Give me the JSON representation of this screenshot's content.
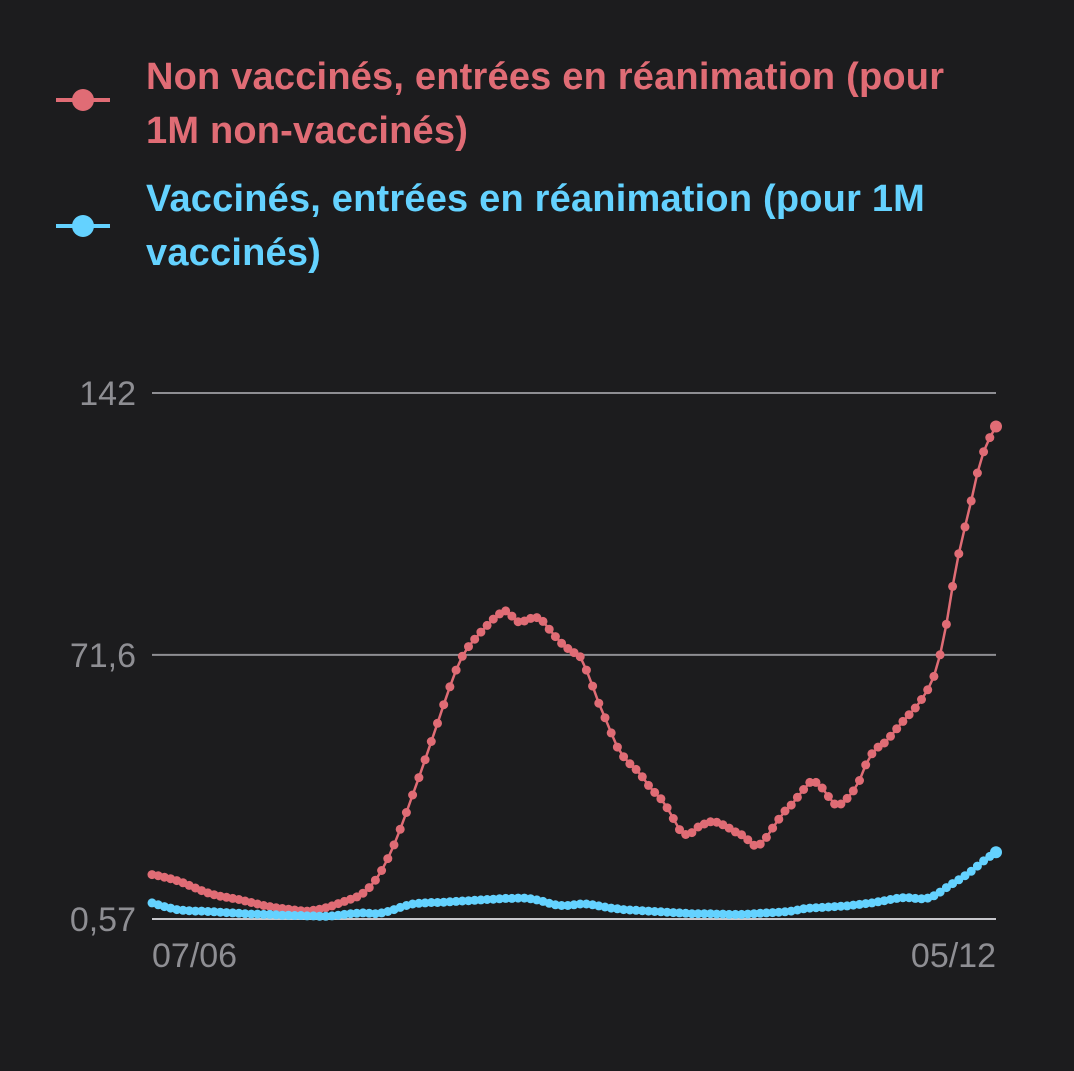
{
  "chart_data": {
    "type": "line",
    "title": "",
    "xlabel": "",
    "ylabel": "",
    "x_range": [
      "07/06",
      "05/12"
    ],
    "x_ticks": [
      "07/06",
      "05/12"
    ],
    "y_ticks": [
      "142",
      "71,6",
      "0,57"
    ],
    "ylim": [
      0.57,
      142
    ],
    "grid": true,
    "legend": "top",
    "series": [
      {
        "name": "Non vaccinés, entrées en réanimation (pour 1M non-vaccinés)",
        "color": "#e06c75",
        "values": [
          12.5,
          12.2,
          11.8,
          11.4,
          10.9,
          10.3,
          9.6,
          8.9,
          8.2,
          7.6,
          7.1,
          6.7,
          6.4,
          6.1,
          5.8,
          5.4,
          5.0,
          4.6,
          4.2,
          3.9,
          3.6,
          3.4,
          3.2,
          3.0,
          2.8,
          2.7,
          2.9,
          3.2,
          3.6,
          4.1,
          4.7,
          5.3,
          5.9,
          6.5,
          7.5,
          9.0,
          11.0,
          13.6,
          16.8,
          20.5,
          24.7,
          29.2,
          33.9,
          38.6,
          43.4,
          48.3,
          53.2,
          58.2,
          63.0,
          67.5,
          71.2,
          73.8,
          75.8,
          77.7,
          79.5,
          81.2,
          82.6,
          83.4,
          82.0,
          80.5,
          80.7,
          81.4,
          81.6,
          80.6,
          78.5,
          76.5,
          74.7,
          73.3,
          72.2,
          71.1,
          67.5,
          63.2,
          58.6,
          54.7,
          50.6,
          46.8,
          44.2,
          42.3,
          40.8,
          38.8,
          36.5,
          34.6,
          32.9,
          30.5,
          27.6,
          24.6,
          23.3,
          23.8,
          25.3,
          26.1,
          26.7,
          26.6,
          25.9,
          25.0,
          24.0,
          23.2,
          21.9,
          20.4,
          20.7,
          22.5,
          25.0,
          27.4,
          29.6,
          31.2,
          33.3,
          35.4,
          37.3,
          37.3,
          35.8,
          33.5,
          31.5,
          31.5,
          33.0,
          35.0,
          37.8,
          42.0,
          45.0,
          46.8,
          47.9,
          49.7,
          51.7,
          53.7,
          55.5,
          57.3,
          59.6,
          62.2,
          65.8,
          71.6,
          79.8,
          90.0,
          98.8,
          106.0,
          113.0,
          120.5,
          126.2,
          130.0,
          133.0
        ]
      },
      {
        "name": "Vaccinés, entrées en réanimation (pour 1M vaccinés)",
        "color": "#64d2ff",
        "values": [
          4.9,
          4.4,
          3.9,
          3.5,
          3.1,
          2.9,
          2.8,
          2.7,
          2.7,
          2.6,
          2.5,
          2.4,
          2.3,
          2.2,
          2.1,
          2.0,
          1.9,
          1.9,
          1.8,
          1.8,
          1.7,
          1.6,
          1.6,
          1.5,
          1.5,
          1.4,
          1.4,
          1.3,
          1.3,
          1.4,
          1.6,
          1.8,
          2.0,
          2.1,
          2.2,
          2.1,
          2.0,
          2.2,
          2.6,
          3.1,
          3.7,
          4.2,
          4.6,
          4.8,
          4.9,
          5.0,
          5.0,
          5.1,
          5.2,
          5.3,
          5.4,
          5.5,
          5.6,
          5.7,
          5.8,
          5.9,
          6.0,
          6.1,
          6.1,
          6.2,
          6.2,
          6.0,
          5.7,
          5.3,
          4.8,
          4.4,
          4.2,
          4.2,
          4.4,
          4.6,
          4.6,
          4.4,
          4.1,
          3.8,
          3.5,
          3.3,
          3.1,
          3.0,
          2.9,
          2.8,
          2.7,
          2.6,
          2.5,
          2.4,
          2.3,
          2.2,
          2.1,
          2.0,
          2.0,
          2.0,
          2.0,
          1.9,
          1.9,
          1.8,
          1.8,
          1.8,
          1.9,
          2.0,
          2.1,
          2.2,
          2.3,
          2.4,
          2.5,
          2.7,
          3.0,
          3.3,
          3.5,
          3.6,
          3.7,
          3.8,
          3.9,
          4.0,
          4.1,
          4.3,
          4.5,
          4.7,
          4.9,
          5.2,
          5.5,
          5.8,
          6.1,
          6.3,
          6.3,
          6.1,
          6.0,
          6.2,
          6.8,
          7.8,
          9.0,
          10.1,
          11.1,
          12.2,
          13.4,
          14.8,
          16.2,
          17.4,
          18.5
        ]
      }
    ]
  }
}
